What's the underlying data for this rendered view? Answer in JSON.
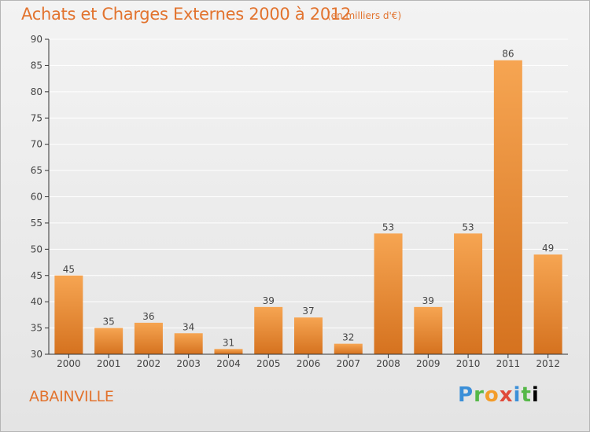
{
  "header": {
    "title": "Achats et Charges Externes 2000 à 2012",
    "subtitle": "(en milliers d'€)"
  },
  "footer": {
    "commune": "ABAINVILLE",
    "logo_text": "Proxiti"
  },
  "colors": {
    "accent": "#e2732e",
    "bar_top": "#f6a552",
    "bar_bottom": "#d5721f",
    "axis": "#333333",
    "grid": "#ffffff"
  },
  "chart_data": {
    "type": "bar",
    "title": "Achats et Charges Externes 2000 à 2012",
    "subtitle": "(en milliers d'€)",
    "categories": [
      "2000",
      "2001",
      "2002",
      "2003",
      "2004",
      "2005",
      "2006",
      "2007",
      "2008",
      "2009",
      "2010",
      "2011",
      "2012"
    ],
    "values": [
      45,
      35,
      36,
      34,
      31,
      39,
      37,
      32,
      53,
      39,
      53,
      86,
      49
    ],
    "ylim": [
      30,
      90
    ],
    "yticks": [
      30,
      35,
      40,
      45,
      50,
      55,
      60,
      65,
      70,
      75,
      80,
      85,
      90
    ],
    "grid": true,
    "xlabel": "",
    "ylabel": ""
  }
}
